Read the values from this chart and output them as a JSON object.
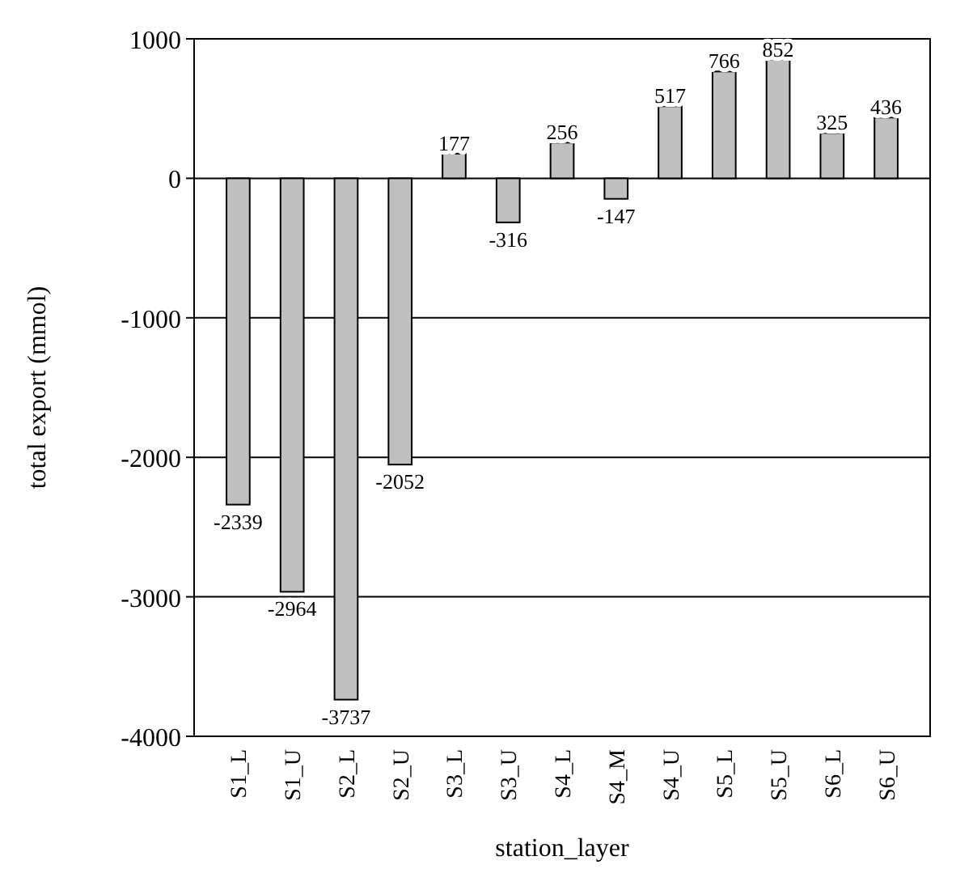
{
  "chart_data": {
    "type": "bar",
    "xlabel": "station_layer",
    "ylabel": "total export (mmol)",
    "categories": [
      "S1_L",
      "S1_U",
      "S2_L",
      "S2_U",
      "S3_L",
      "S3_U",
      "S4_L",
      "S4_M",
      "S4_U",
      "S5_L",
      "S5_U",
      "S6_L",
      "S6_U"
    ],
    "values": [
      -2339,
      -2964,
      -3737,
      -2052,
      177,
      -316,
      256,
      -147,
      517,
      766,
      852,
      325,
      436
    ],
    "color": "#c0c0c0",
    "ylim": [
      -4000,
      1000
    ],
    "yticks": [
      -4000,
      -3000,
      -2000,
      -1000,
      0,
      1000
    ],
    "grid": "y",
    "data_labels": true
  }
}
